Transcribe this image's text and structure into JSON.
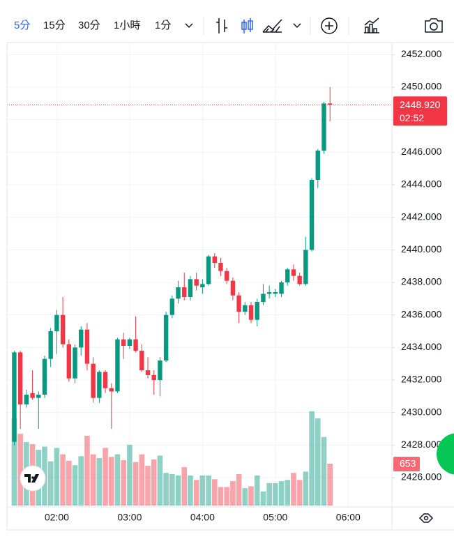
{
  "toolbar": {
    "intervals": [
      "5分",
      "15分",
      "30分",
      "1小時",
      "1分"
    ]
  },
  "chart_data": {
    "type": "candlestick",
    "up_color": "#089981",
    "down_color": "#f23645",
    "grid": true,
    "x": [
      "01:25",
      "01:30",
      "01:35",
      "01:40",
      "01:45",
      "01:50",
      "01:55",
      "02:00",
      "02:05",
      "02:10",
      "02:15",
      "02:20",
      "02:25",
      "02:30",
      "02:35",
      "02:40",
      "02:45",
      "02:50",
      "02:55",
      "03:00",
      "03:05",
      "03:10",
      "03:15",
      "03:20",
      "03:25",
      "03:30",
      "03:35",
      "03:40",
      "03:45",
      "03:50",
      "03:55",
      "04:00",
      "04:05",
      "04:10",
      "04:15",
      "04:20",
      "04:25",
      "04:30",
      "04:35",
      "04:40",
      "04:45",
      "04:50",
      "04:55",
      "05:00",
      "05:05",
      "05:10",
      "05:15",
      "05:20",
      "05:25",
      "05:30",
      "05:35",
      "05:40",
      "05:45"
    ],
    "open": [
      2428.2,
      2433.7,
      2430.5,
      2431.2,
      2430.9,
      2431.1,
      2433.3,
      2435.0,
      2436.0,
      2434.2,
      2432.1,
      2434.0,
      2435.1,
      2433.0,
      2430.9,
      2432.5,
      2431.5,
      2431.3,
      2434.5,
      2434.1,
      2434.5,
      2433.8,
      2432.6,
      2432.3,
      2432.0,
      2433.2,
      2436.0,
      2437.0,
      2437.7,
      2437.1,
      2438.2,
      2437.7,
      2437.9,
      2439.6,
      2439.2,
      2438.7,
      2438.1,
      2437.2,
      2436.2,
      2436.6,
      2435.7,
      2436.8,
      2437.3,
      2437.3,
      2437.3,
      2438.0,
      2438.8,
      2438.4,
      2437.9,
      2440.0,
      2444.3,
      2446.1,
      2449.0
    ],
    "high": [
      2433.8,
      2433.8,
      2431.4,
      2432.6,
      2431.3,
      2433.5,
      2435.2,
      2436.3,
      2437.1,
      2434.5,
      2434.2,
      2435.3,
      2435.5,
      2433.4,
      2432.6,
      2432.6,
      2431.8,
      2434.6,
      2434.9,
      2434.6,
      2435.9,
      2434.2,
      2433.4,
      2432.6,
      2433.4,
      2436.2,
      2437.2,
      2438.1,
      2438.6,
      2438.4,
      2438.6,
      2438.2,
      2439.7,
      2439.8,
      2439.5,
      2438.9,
      2438.3,
      2437.4,
      2436.8,
      2436.8,
      2437.0,
      2437.9,
      2437.8,
      2437.6,
      2438.1,
      2438.9,
      2439.1,
      2438.6,
      2440.8,
      2444.4,
      2446.2,
      2449.1,
      2450.0
    ],
    "low": [
      2428.0,
      2429.0,
      2430.3,
      2430.8,
      2429.0,
      2430.9,
      2432.8,
      2433.6,
      2434.0,
      2431.9,
      2431.8,
      2433.5,
      2432.6,
      2430.6,
      2430.6,
      2431.2,
      2429.0,
      2431.2,
      2433.3,
      2433.9,
      2433.7,
      2432.5,
      2432.1,
      2431.1,
      2431.0,
      2433.1,
      2435.8,
      2436.7,
      2436.9,
      2436.9,
      2437.5,
      2437.3,
      2437.8,
      2438.9,
      2438.4,
      2437.9,
      2436.9,
      2435.5,
      2436.0,
      2435.5,
      2435.3,
      2436.6,
      2437.0,
      2437.1,
      2437.1,
      2437.8,
      2438.1,
      2437.8,
      2437.8,
      2439.9,
      2443.8,
      2445.9,
      2447.9
    ],
    "close": [
      2433.7,
      2430.5,
      2431.1,
      2430.9,
      2431.1,
      2433.3,
      2435.0,
      2436.0,
      2434.2,
      2432.1,
      2434.0,
      2435.1,
      2433.0,
      2430.9,
      2432.5,
      2431.5,
      2431.3,
      2434.5,
      2434.1,
      2434.5,
      2433.8,
      2432.6,
      2432.3,
      2432.0,
      2433.2,
      2436.0,
      2437.0,
      2437.7,
      2437.1,
      2438.2,
      2437.8,
      2437.9,
      2439.6,
      2439.2,
      2438.7,
      2438.1,
      2437.2,
      2436.2,
      2436.6,
      2435.7,
      2436.8,
      2437.3,
      2437.4,
      2437.4,
      2438.0,
      2438.8,
      2438.4,
      2437.9,
      2440.0,
      2444.3,
      2446.1,
      2449.0,
      2448.92
    ],
    "volume": [
      1360,
      1120,
      990,
      960,
      870,
      920,
      690,
      900,
      800,
      700,
      630,
      770,
      1090,
      800,
      740,
      900,
      760,
      800,
      710,
      950,
      680,
      800,
      620,
      720,
      780,
      510,
      490,
      470,
      600,
      470,
      400,
      470,
      470,
      410,
      290,
      290,
      380,
      490,
      270,
      300,
      470,
      220,
      350,
      350,
      380,
      400,
      510,
      400,
      530,
      1470,
      1360,
      1070,
      653
    ],
    "last_price": {
      "value": 2448.92,
      "label": "2448.920"
    },
    "countdown": "02:52",
    "xlim": [
      "01:19",
      "06:36"
    ],
    "xticks": [
      "02:00",
      "03:00",
      "04:00",
      "05:00",
      "06:00"
    ],
    "ylim": [
      2424.2,
      2452.7
    ],
    "yticks": [
      {
        "value": 2426,
        "label": "2426.000"
      },
      {
        "value": 2428,
        "label": "2428.000"
      },
      {
        "value": 2430,
        "label": "2430.000"
      },
      {
        "value": 2432,
        "label": "2432.000"
      },
      {
        "value": 2434,
        "label": "2434.000"
      },
      {
        "value": 2436,
        "label": "2436.000"
      },
      {
        "value": 2438,
        "label": "2438.000"
      },
      {
        "value": 2440,
        "label": "2440.000"
      },
      {
        "value": 2442,
        "label": "2442.000"
      },
      {
        "value": 2444,
        "label": "2444.000"
      },
      {
        "value": 2446,
        "label": "2446.000"
      },
      {
        "value": 2448,
        "label": "2448.000"
      },
      {
        "value": 2450,
        "label": "2450.000"
      },
      {
        "value": 2452,
        "label": "2452.000"
      }
    ]
  }
}
